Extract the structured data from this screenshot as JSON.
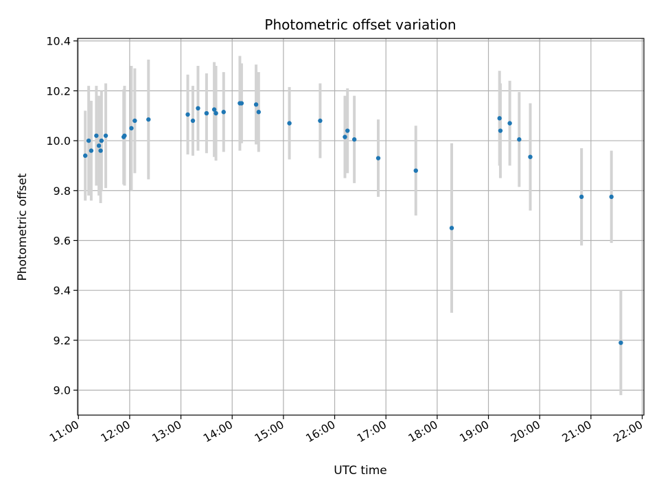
{
  "chart_data": {
    "type": "scatter",
    "title": "Photometric offset variation",
    "xlabel": "UTC time",
    "ylabel": "Photometric offset",
    "ylim": [
      8.9,
      10.41
    ],
    "xlim": [
      "10:59",
      "22:02"
    ],
    "grid": true,
    "x_ticks": [
      "11:00",
      "12:00",
      "13:00",
      "14:00",
      "15:00",
      "16:00",
      "17:00",
      "18:00",
      "19:00",
      "20:00",
      "21:00",
      "22:00"
    ],
    "y_ticks": [
      "9.0",
      "9.2",
      "9.4",
      "9.6",
      "9.8",
      "10.0",
      "10.2",
      "10.4"
    ],
    "colors": {
      "points": "#1f77b4",
      "errorbars": "#d3d3d3",
      "grid": "#b0b0b0"
    },
    "series": [
      {
        "points": [
          {
            "x": "11:08",
            "y": 9.94,
            "err": 0.18
          },
          {
            "x": "11:12",
            "y": 10.0,
            "err": 0.22
          },
          {
            "x": "11:15",
            "y": 9.96,
            "err": 0.2
          },
          {
            "x": "11:21",
            "y": 10.02,
            "err": 0.2
          },
          {
            "x": "11:24",
            "y": 9.98,
            "err": 0.2
          },
          {
            "x": "11:26",
            "y": 9.96,
            "err": 0.21
          },
          {
            "x": "11:27",
            "y": 10.0,
            "err": 0.2
          },
          {
            "x": "11:32",
            "y": 10.02,
            "err": 0.21
          },
          {
            "x": "11:53",
            "y": 10.015,
            "err": 0.19
          },
          {
            "x": "11:54",
            "y": 10.02,
            "err": 0.2
          },
          {
            "x": "12:02",
            "y": 10.05,
            "err": 0.25
          },
          {
            "x": "12:06",
            "y": 10.08,
            "err": 0.21
          },
          {
            "x": "12:22",
            "y": 10.085,
            "err": 0.24
          },
          {
            "x": "13:08",
            "y": 10.105,
            "err": 0.16
          },
          {
            "x": "13:14",
            "y": 10.08,
            "err": 0.14
          },
          {
            "x": "13:20",
            "y": 10.13,
            "err": 0.17
          },
          {
            "x": "13:30",
            "y": 10.11,
            "err": 0.16
          },
          {
            "x": "13:39",
            "y": 10.125,
            "err": 0.19
          },
          {
            "x": "13:41",
            "y": 10.11,
            "err": 0.19
          },
          {
            "x": "13:50",
            "y": 10.115,
            "err": 0.16
          },
          {
            "x": "14:09",
            "y": 10.15,
            "err": 0.19
          },
          {
            "x": "14:11",
            "y": 10.15,
            "err": 0.16
          },
          {
            "x": "14:28",
            "y": 10.145,
            "err": 0.16
          },
          {
            "x": "14:31",
            "y": 10.115,
            "err": 0.16
          },
          {
            "x": "15:07",
            "y": 10.07,
            "err": 0.145
          },
          {
            "x": "15:43",
            "y": 10.08,
            "err": 0.15
          },
          {
            "x": "16:12",
            "y": 10.015,
            "err": 0.165
          },
          {
            "x": "16:15",
            "y": 10.04,
            "err": 0.17
          },
          {
            "x": "16:23",
            "y": 10.005,
            "err": 0.175
          },
          {
            "x": "16:51",
            "y": 9.93,
            "err": 0.155
          },
          {
            "x": "17:35",
            "y": 9.88,
            "err": 0.18
          },
          {
            "x": "18:17",
            "y": 9.65,
            "err": 0.34
          },
          {
            "x": "19:13",
            "y": 10.09,
            "err": 0.19
          },
          {
            "x": "19:14",
            "y": 10.04,
            "err": 0.19
          },
          {
            "x": "19:25",
            "y": 10.07,
            "err": 0.17
          },
          {
            "x": "19:36",
            "y": 10.005,
            "err": 0.19
          },
          {
            "x": "19:49",
            "y": 9.935,
            "err": 0.215
          },
          {
            "x": "20:49",
            "y": 9.775,
            "err": 0.195
          },
          {
            "x": "21:24",
            "y": 9.775,
            "err": 0.185
          },
          {
            "x": "21:35",
            "y": 9.19,
            "err": 0.21
          }
        ]
      }
    ]
  }
}
